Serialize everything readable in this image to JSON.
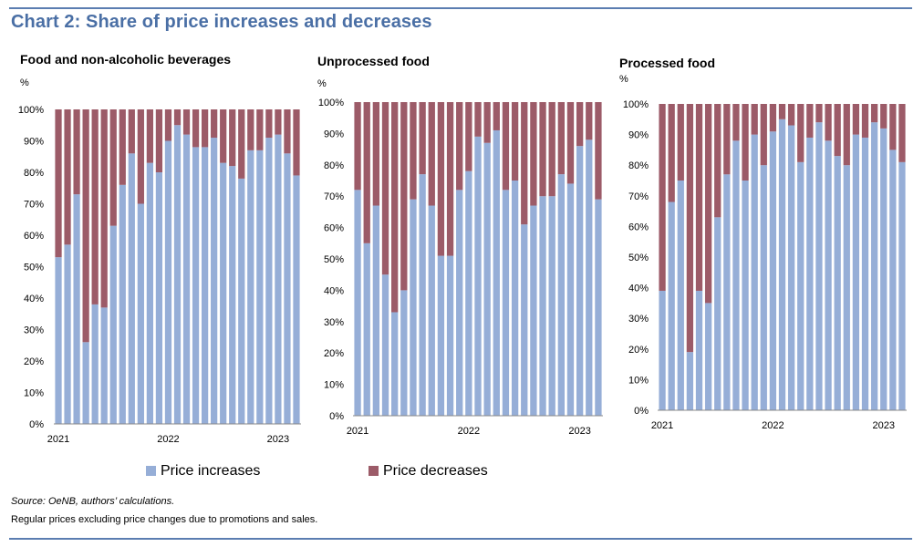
{
  "header": {
    "title": "Chart 2: Share of price increases and decreases"
  },
  "colors": {
    "increase": "#96aed7",
    "decrease": "#9c5b68",
    "accent": "#5b7db1",
    "title": "#4a6fa5"
  },
  "legend": {
    "increases": "Price increases",
    "decreases": "Price decreases"
  },
  "footer": {
    "source": "Source: OeNB, authors’ calculations.",
    "note": "Regular prices excluding price changes due to promotions and sales."
  },
  "chart_data": [
    {
      "type": "bar",
      "stacked": true,
      "title": "Food and non-alcoholic beverages",
      "ylabel": "%",
      "ylim": [
        0,
        100
      ],
      "yticks": [
        "0%",
        "10%",
        "20%",
        "30%",
        "40%",
        "50%",
        "60%",
        "70%",
        "80%",
        "90%",
        "100%"
      ],
      "xticks": [
        "2021",
        "2022",
        "2023"
      ],
      "xtick_indices": [
        0,
        12,
        24
      ],
      "series": [
        {
          "name": "Price increases",
          "values": [
            53,
            57,
            73,
            26,
            38,
            37,
            63,
            76,
            86,
            70,
            83,
            80,
            90,
            95,
            92,
            88,
            88,
            91,
            83,
            82,
            78,
            87,
            87,
            91,
            92,
            86,
            79
          ]
        },
        {
          "name": "Price decreases",
          "values": [
            47,
            43,
            27,
            74,
            62,
            63,
            37,
            24,
            14,
            30,
            17,
            20,
            10,
            5,
            8,
            12,
            12,
            9,
            17,
            18,
            22,
            13,
            13,
            9,
            8,
            14,
            21
          ]
        }
      ]
    },
    {
      "type": "bar",
      "stacked": true,
      "title": "Unprocessed food",
      "ylabel": "%",
      "ylim": [
        0,
        100
      ],
      "yticks": [
        "0%",
        "10%",
        "20%",
        "30%",
        "40%",
        "50%",
        "60%",
        "70%",
        "80%",
        "90%",
        "100%"
      ],
      "xticks": [
        "2021",
        "2022",
        "2023"
      ],
      "xtick_indices": [
        0,
        12,
        24
      ],
      "series": [
        {
          "name": "Price increases",
          "values": [
            72,
            55,
            67,
            45,
            33,
            40,
            69,
            77,
            67,
            51,
            51,
            72,
            78,
            89,
            87,
            91,
            72,
            75,
            61,
            67,
            70,
            70,
            77,
            74,
            86,
            88,
            69
          ]
        },
        {
          "name": "Price decreases",
          "values": [
            28,
            45,
            33,
            55,
            67,
            60,
            31,
            23,
            33,
            49,
            49,
            28,
            22,
            11,
            13,
            9,
            28,
            25,
            39,
            33,
            30,
            30,
            23,
            26,
            14,
            12,
            31
          ]
        }
      ]
    },
    {
      "type": "bar",
      "stacked": true,
      "title": "Processed food",
      "ylabel": "%",
      "ylim": [
        0,
        100
      ],
      "yticks": [
        "0%",
        "10%",
        "20%",
        "30%",
        "40%",
        "50%",
        "60%",
        "70%",
        "80%",
        "90%",
        "100%"
      ],
      "xticks": [
        "2021",
        "2022",
        "2023"
      ],
      "xtick_indices": [
        0,
        12,
        24
      ],
      "series": [
        {
          "name": "Price increases",
          "values": [
            39,
            68,
            75,
            19,
            39,
            35,
            63,
            77,
            88,
            75,
            90,
            80,
            91,
            95,
            93,
            81,
            89,
            94,
            88,
            83,
            80,
            90,
            89,
            94,
            92,
            85,
            81
          ]
        },
        {
          "name": "Price decreases",
          "values": [
            61,
            32,
            25,
            81,
            61,
            65,
            37,
            23,
            12,
            25,
            10,
            20,
            9,
            5,
            7,
            19,
            11,
            6,
            12,
            17,
            20,
            10,
            11,
            6,
            8,
            15,
            19
          ]
        }
      ]
    }
  ]
}
